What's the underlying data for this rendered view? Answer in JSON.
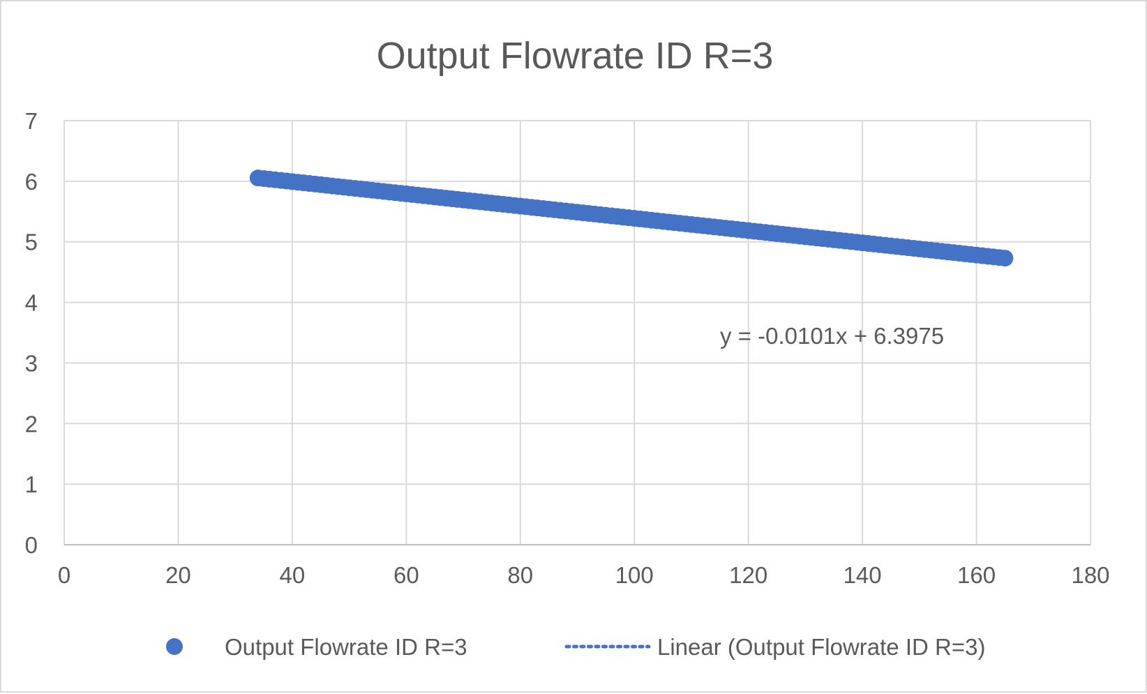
{
  "chart_data": {
    "type": "scatter",
    "title": "Output Flowrate ID R=3",
    "xlabel": "",
    "ylabel": "",
    "xlim": [
      0,
      180
    ],
    "ylim": [
      0,
      7
    ],
    "xticks": [
      "0",
      "20",
      "40",
      "60",
      "80",
      "100",
      "120",
      "140",
      "160",
      "180"
    ],
    "yticks": [
      "0",
      "1",
      "2",
      "3",
      "4",
      "5",
      "6",
      "7"
    ],
    "grid": true,
    "legend_position": "bottom",
    "series": [
      {
        "name": "Output Flowrate ID R=3",
        "color": "#4472c4",
        "marker": "circle",
        "x_range": [
          34,
          165
        ],
        "x_step": 1,
        "slope": -0.0101,
        "intercept": 6.3975
      }
    ],
    "trendline": {
      "name": "Linear (Output Flowrate ID R=3)",
      "type": "linear",
      "style": "dotted",
      "color": "#4472c4",
      "equation": "y = -0.0101x + 6.3975"
    }
  }
}
